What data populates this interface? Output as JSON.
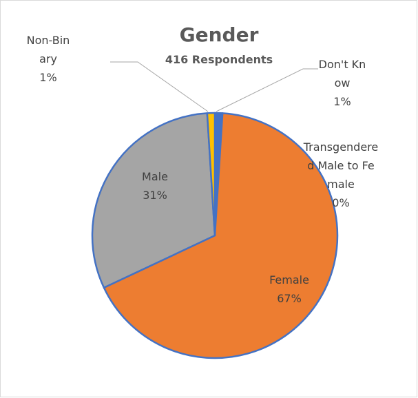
{
  "chart_data": {
    "type": "pie",
    "title": "Gender",
    "subtitle": "416 Respondents",
    "categories": [
      "Don't Know",
      "Transgendered Male to Female",
      "Female",
      "Male",
      "Non-Binary"
    ],
    "values": [
      1,
      0,
      67,
      31,
      1
    ],
    "value_labels": [
      "1%",
      "0%",
      "67%",
      "31%",
      "1%"
    ],
    "colors": [
      "#4472c4",
      "#5b9bd5",
      "#ed7d31",
      "#a5a5a5",
      "#ffc000"
    ]
  }
}
